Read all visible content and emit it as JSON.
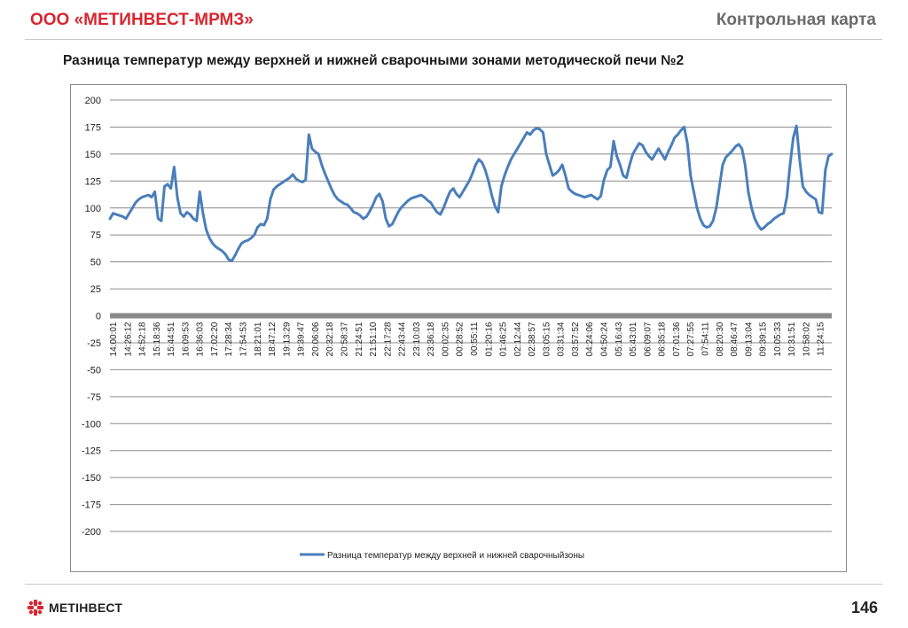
{
  "header": {
    "company": "ООО «МЕТИНВЕСТ-МРМЗ»",
    "slide_title": "Контрольная карта"
  },
  "footer": {
    "logo_text": "МЕТІНВЕСТ",
    "page_number": "146"
  },
  "colors": {
    "brand_red": "#d8262f",
    "series": "#4a7ebb",
    "grid": "#8c8c8c"
  },
  "chart_data": {
    "type": "line",
    "title": "Разница температур между верхней и нижней сварочными зонами методической печи №2",
    "xlabel": "",
    "ylabel": "",
    "ylim": [
      -200,
      200
    ],
    "yticks": [
      200,
      175,
      150,
      125,
      100,
      75,
      50,
      25,
      0,
      -25,
      -50,
      -75,
      -100,
      -125,
      -150,
      -175,
      -200
    ],
    "grid": true,
    "legend": "bottom",
    "x_tick_labels": [
      "14:00:01",
      "14:26:12",
      "14:52:18",
      "15:18:36",
      "15:44:51",
      "16:09:53",
      "16:36:03",
      "17:02:20",
      "17:28:34",
      "17:54:53",
      "18:21:01",
      "18:47:12",
      "19:13:29",
      "19:39:47",
      "20:06:06",
      "20:32:18",
      "20:58:37",
      "21:24:51",
      "21:51:10",
      "22:17:28",
      "22:43:44",
      "23:10:03",
      "23:36:18",
      "00:02:35",
      "00:28:52",
      "00:55:11",
      "01:20:16",
      "01:46:25",
      "02:12:44",
      "02:38:57",
      "03:05:15",
      "03:31:34",
      "03:57:52",
      "04:24:06",
      "04:50:24",
      "05:16:43",
      "05:43:01",
      "06:09:07",
      "06:35:18",
      "07:01:36",
      "07:27:55",
      "07:54:11",
      "08:20:30",
      "08:46:47",
      "09:13:04",
      "09:39:15",
      "10:05:33",
      "10:31:51",
      "10:58:02",
      "11:24:15"
    ],
    "series": [
      {
        "name": "Разница температур между верхней и нижней сварочныйзоны",
        "values": [
          90,
          95,
          94,
          93,
          92,
          90,
          95,
          100,
          105,
          108,
          110,
          111,
          112,
          110,
          115,
          90,
          88,
          120,
          122,
          118,
          138,
          110,
          95,
          92,
          96,
          94,
          90,
          88,
          115,
          95,
          80,
          72,
          67,
          64,
          62,
          60,
          57,
          52,
          51,
          56,
          62,
          67,
          69,
          70,
          72,
          75,
          82,
          85,
          84,
          90,
          108,
          117,
          120,
          122,
          124,
          126,
          128,
          131,
          127,
          125,
          124,
          126,
          168,
          155,
          152,
          150,
          140,
          132,
          125,
          118,
          112,
          108,
          106,
          104,
          103,
          100,
          96,
          95,
          93,
          90,
          92,
          97,
          103,
          110,
          113,
          106,
          90,
          83,
          85,
          91,
          97,
          101,
          104,
          107,
          109,
          110,
          111,
          112,
          110,
          107,
          105,
          100,
          96,
          94,
          100,
          108,
          115,
          118,
          113,
          110,
          115,
          120,
          125,
          132,
          140,
          145,
          142,
          135,
          125,
          112,
          102,
          96,
          120,
          130,
          138,
          145,
          150,
          155,
          160,
          165,
          170,
          168,
          172,
          174,
          173,
          170,
          150,
          140,
          130,
          132,
          135,
          140,
          130,
          118,
          115,
          113,
          112,
          111,
          110,
          111,
          112,
          110,
          108,
          111,
          126,
          135,
          138,
          162,
          148,
          140,
          130,
          128,
          140,
          150,
          155,
          160,
          158,
          152,
          148,
          145,
          150,
          155,
          150,
          145,
          152,
          158,
          165,
          168,
          172,
          175,
          160,
          130,
          115,
          100,
          90,
          84,
          82,
          83,
          88,
          100,
          120,
          140,
          147,
          150,
          153,
          157,
          159,
          155,
          140,
          115,
          100,
          90,
          84,
          80,
          82,
          85,
          87,
          90,
          92,
          94,
          95,
          110,
          140,
          165,
          176,
          145,
          120,
          115,
          112,
          110,
          108,
          96,
          95,
          135,
          148,
          150
        ]
      }
    ]
  }
}
